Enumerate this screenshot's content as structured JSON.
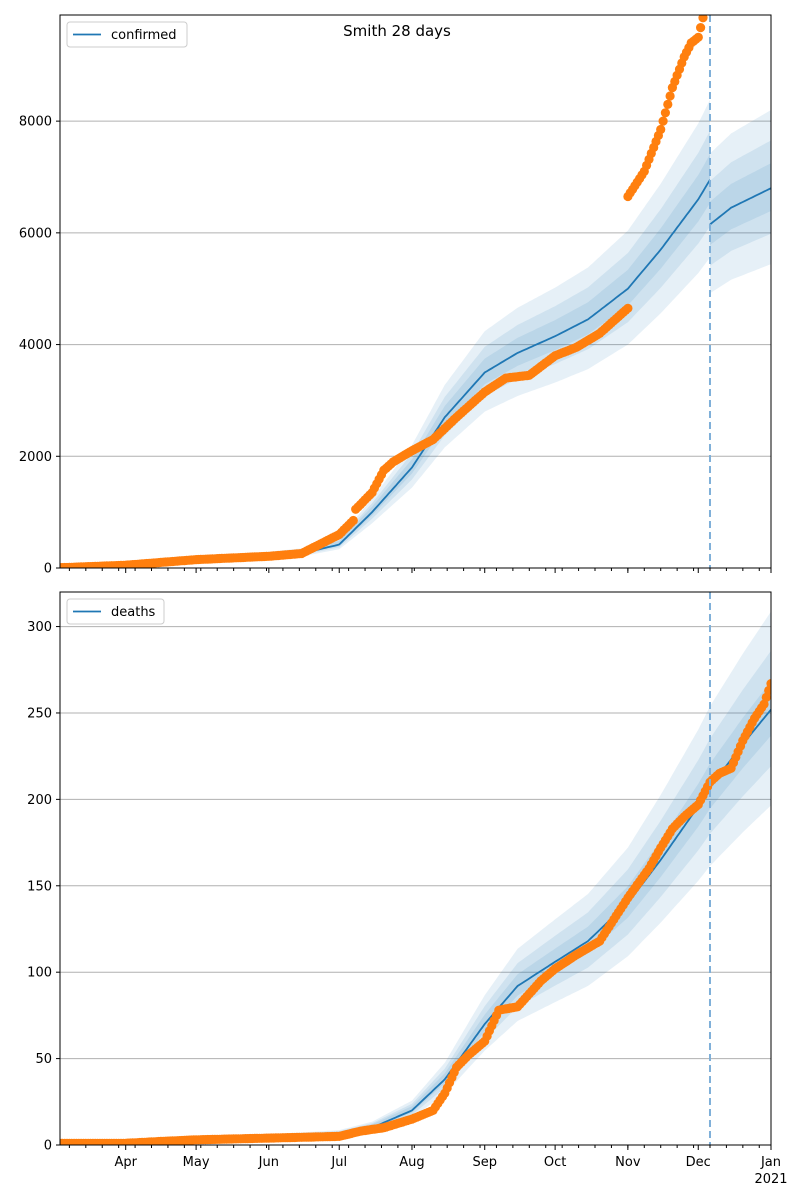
{
  "chart_data": {
    "title": "Smith 28 days",
    "type": "line",
    "shared_x": {
      "ticks": [
        {
          "date": "2020-04-01",
          "label": "Apr"
        },
        {
          "date": "2020-05-01",
          "label": "May"
        },
        {
          "date": "2020-06-01",
          "label": "Jun"
        },
        {
          "date": "2020-07-01",
          "label": "Jul"
        },
        {
          "date": "2020-08-01",
          "label": "Aug"
        },
        {
          "date": "2020-09-01",
          "label": "Sep"
        },
        {
          "date": "2020-10-01",
          "label": "Oct"
        },
        {
          "date": "2020-11-01",
          "label": "Nov"
        },
        {
          "date": "2020-12-01",
          "label": "Dec"
        },
        {
          "date": "2021-01-01",
          "label": "Jan",
          "sublabel": "2021"
        }
      ],
      "xlim": [
        "2020-03-04",
        "2021-01-01"
      ],
      "forecast_start": "2020-12-06"
    },
    "panels": [
      {
        "series_name": "confirmed",
        "ylim": [
          0,
          9900
        ],
        "yticks": [
          0,
          2000,
          4000,
          6000,
          8000
        ],
        "fit_before": [
          [
            "2020-03-04",
            5
          ],
          [
            "2020-04-01",
            60
          ],
          [
            "2020-05-01",
            150
          ],
          [
            "2020-06-01",
            210
          ],
          [
            "2020-06-15",
            260
          ],
          [
            "2020-07-01",
            420
          ],
          [
            "2020-07-15",
            1000
          ],
          [
            "2020-08-01",
            1800
          ],
          [
            "2020-08-15",
            2700
          ],
          [
            "2020-09-01",
            3500
          ],
          [
            "2020-09-15",
            3850
          ],
          [
            "2020-10-01",
            4150
          ],
          [
            "2020-10-15",
            4450
          ],
          [
            "2020-11-01",
            5000
          ],
          [
            "2020-11-15",
            5700
          ],
          [
            "2020-12-01",
            6600
          ],
          [
            "2020-12-06",
            6950
          ]
        ],
        "fit_after": [
          [
            "2020-12-06",
            6150
          ],
          [
            "2020-12-15",
            6450
          ],
          [
            "2021-01-01",
            6800
          ]
        ],
        "band_widths": [
          0.06,
          0.12,
          0.2
        ],
        "observed_segments": [
          [
            [
              "2020-03-04",
              5
            ],
            [
              "2020-04-01",
              50
            ],
            [
              "2020-05-01",
              150
            ],
            [
              "2020-06-01",
              210
            ],
            [
              "2020-06-15",
              260
            ],
            [
              "2020-07-01",
              600
            ],
            [
              "2020-07-07",
              850
            ]
          ],
          [
            [
              "2020-07-08",
              1050
            ],
            [
              "2020-07-15",
              1350
            ],
            [
              "2020-07-20",
              1750
            ],
            [
              "2020-07-24",
              1900
            ],
            [
              "2020-08-01",
              2100
            ],
            [
              "2020-08-10",
              2300
            ],
            [
              "2020-08-20",
              2700
            ],
            [
              "2020-09-01",
              3150
            ],
            [
              "2020-09-10",
              3400
            ],
            [
              "2020-09-20",
              3450
            ],
            [
              "2020-10-01",
              3800
            ],
            [
              "2020-10-10",
              3950
            ],
            [
              "2020-10-20",
              4200
            ],
            [
              "2020-11-01",
              4650
            ]
          ],
          [
            [
              "2020-11-01",
              6650
            ],
            [
              "2020-11-08",
              7100
            ],
            [
              "2020-11-15",
              7850
            ],
            [
              "2020-11-20",
              8600
            ],
            [
              "2020-11-25",
              9150
            ],
            [
              "2020-11-28",
              9400
            ],
            [
              "2020-12-01",
              9500
            ],
            [
              "2020-12-03",
              9850
            ]
          ]
        ]
      },
      {
        "series_name": "deaths",
        "ylim": [
          0,
          320
        ],
        "yticks": [
          0,
          50,
          100,
          150,
          200,
          250,
          300
        ],
        "fit_before": [
          [
            "2020-03-04",
            0
          ],
          [
            "2020-04-01",
            1
          ],
          [
            "2020-05-01",
            2
          ],
          [
            "2020-06-01",
            4
          ],
          [
            "2020-07-01",
            6
          ],
          [
            "2020-07-15",
            10
          ],
          [
            "2020-08-01",
            20
          ],
          [
            "2020-08-15",
            38
          ],
          [
            "2020-09-01",
            70
          ],
          [
            "2020-09-15",
            92
          ],
          [
            "2020-10-01",
            106
          ],
          [
            "2020-10-15",
            118
          ],
          [
            "2020-11-01",
            140
          ],
          [
            "2020-11-15",
            165
          ],
          [
            "2020-12-01",
            196
          ],
          [
            "2020-12-06",
            207
          ]
        ],
        "fit_after": [
          [
            "2020-12-06",
            207
          ],
          [
            "2020-12-20",
            232
          ],
          [
            "2021-01-01",
            252
          ]
        ],
        "band_widths": [
          0.06,
          0.13,
          0.22
        ],
        "observed_segments": [
          [
            [
              "2020-03-04",
              1
            ],
            [
              "2020-04-01",
              1
            ],
            [
              "2020-04-15",
              2
            ],
            [
              "2020-05-01",
              3
            ],
            [
              "2020-06-01",
              4
            ],
            [
              "2020-07-01",
              5
            ],
            [
              "2020-07-10",
              8
            ],
            [
              "2020-07-20",
              10
            ],
            [
              "2020-08-01",
              15
            ],
            [
              "2020-08-10",
              20
            ],
            [
              "2020-08-15",
              30
            ],
            [
              "2020-08-20",
              45
            ],
            [
              "2020-08-25",
              52
            ],
            [
              "2020-09-01",
              60
            ],
            [
              "2020-09-07",
              78
            ],
            [
              "2020-09-15",
              80
            ],
            [
              "2020-09-25",
              95
            ],
            [
              "2020-10-01",
              102
            ],
            [
              "2020-10-10",
              110
            ],
            [
              "2020-10-20",
              118
            ],
            [
              "2020-11-01",
              143
            ],
            [
              "2020-11-10",
              160
            ],
            [
              "2020-11-15",
              172
            ],
            [
              "2020-11-20",
              183
            ],
            [
              "2020-11-25",
              190
            ],
            [
              "2020-12-01",
              197
            ],
            [
              "2020-12-06",
              210
            ],
            [
              "2020-12-10",
              215
            ],
            [
              "2020-12-15",
              218
            ],
            [
              "2020-12-20",
              234
            ],
            [
              "2020-12-25",
              247
            ],
            [
              "2020-12-29",
              255
            ],
            [
              "2021-01-01",
              267
            ]
          ]
        ]
      }
    ],
    "colors": {
      "fit_line": "#1f77b4",
      "band": "#1f77b4",
      "observed": "#ff7f0e",
      "forecast_line": "#7fb0d9",
      "grid": "#b0b0b0"
    },
    "legend_placement": "top-left",
    "grid": "horizontal"
  }
}
